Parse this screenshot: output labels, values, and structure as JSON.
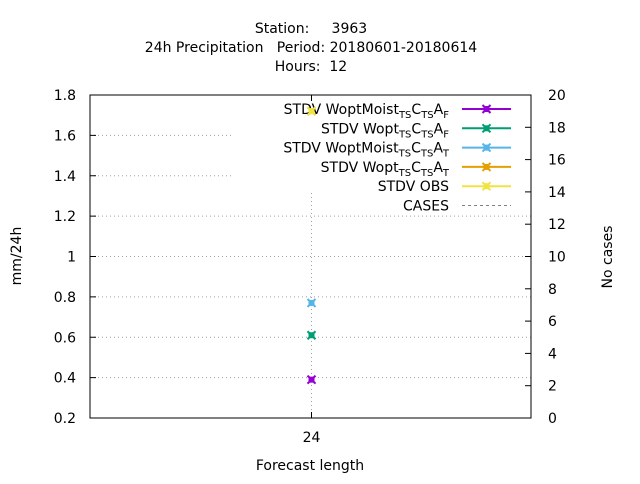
{
  "chart_data": {
    "type": "scatter",
    "title_lines": [
      "Station:     3963",
      "24h Precipitation   Period: 20180601-20180614",
      "Hours:  12"
    ],
    "xlabel": "Forecast length",
    "ylabel": "mm/24h",
    "y2label": "No cases",
    "categories": [
      "24"
    ],
    "ylim": [
      0.2,
      1.8
    ],
    "y_ticks": [
      "0.2",
      "0.4",
      "0.6",
      "0.8",
      "1",
      "1.2",
      "1.4",
      "1.6",
      "1.8"
    ],
    "y2lim": [
      0,
      20
    ],
    "y2_ticks": [
      "0",
      "2",
      "4",
      "6",
      "8",
      "10",
      "12",
      "14",
      "16",
      "18",
      "20"
    ],
    "grid": true,
    "legend_position": "top-right",
    "series": [
      {
        "name": "STDV WoptMoist",
        "sub": "TS",
        "mid": "C",
        "sub2": "TS",
        "end": "A",
        "sub3": "F",
        "color": "#9400d3",
        "axis": "y",
        "values": [
          0.39
        ]
      },
      {
        "name": "STDV Wopt",
        "sub": "TS",
        "mid": "C",
        "sub2": "TS",
        "end": "A",
        "sub3": "F",
        "color": "#009e73",
        "axis": "y",
        "values": [
          0.61
        ]
      },
      {
        "name": "STDV WoptMoist",
        "sub": "TS",
        "mid": "C",
        "sub2": "TS",
        "end": "A",
        "sub3": "T",
        "color": "#56b4e9",
        "axis": "y",
        "values": [
          0.77
        ]
      },
      {
        "name": "STDV Wopt",
        "sub": "TS",
        "mid": "C",
        "sub2": "TS",
        "end": "A",
        "sub3": "T",
        "color": "#e69f00",
        "axis": "y",
        "values": [
          1.72
        ]
      },
      {
        "name": "STDV OBS",
        "sub": "",
        "mid": "",
        "sub2": "",
        "end": "",
        "sub3": "",
        "color": "#f0e442",
        "axis": "y",
        "values": [
          1.72
        ]
      },
      {
        "name": "CASES",
        "sub": "",
        "mid": "",
        "sub2": "",
        "end": "",
        "sub3": "",
        "color": "#808080",
        "axis": "y2",
        "values": [
          13
        ],
        "dashed": true
      }
    ]
  }
}
